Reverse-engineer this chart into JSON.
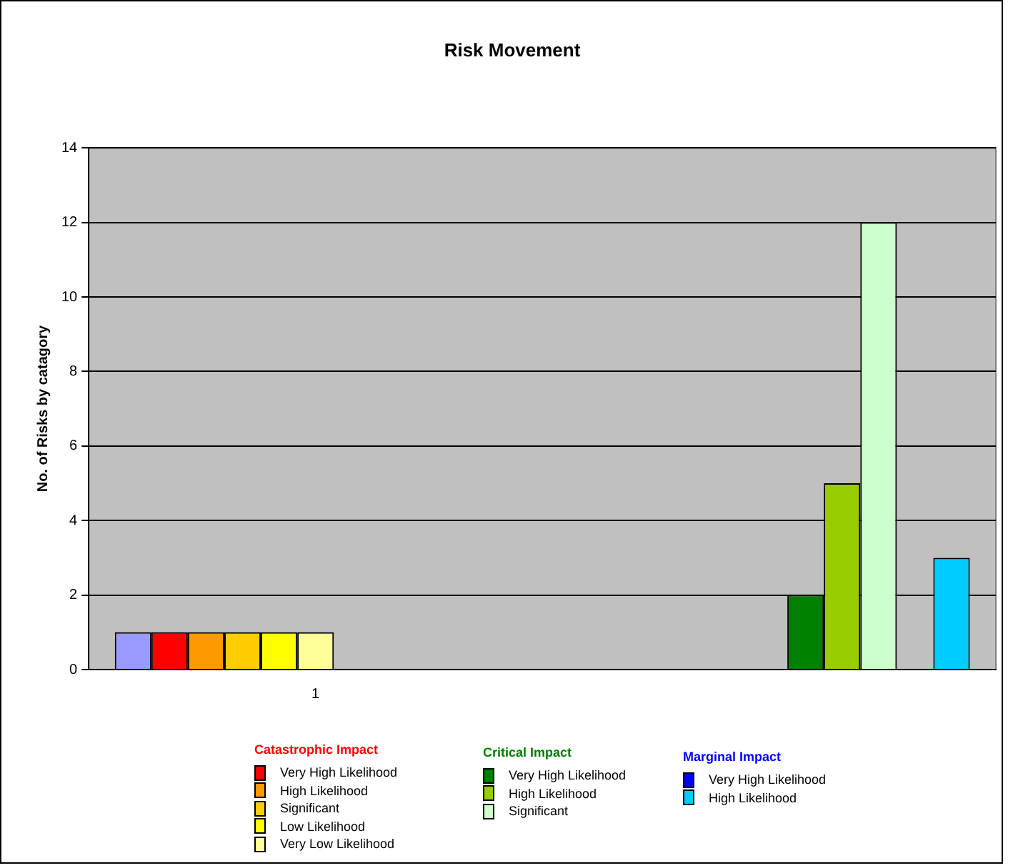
{
  "chart_data": {
    "type": "bar",
    "title": "Risk Movement",
    "ylabel": "No. of Risks by catagory",
    "categories": [
      "1",
      null
    ],
    "series": [
      {
        "color": "#9999ff",
        "values": [
          1,
          0
        ]
      },
      {
        "name": "Very High Likelihood",
        "color": "#ff0000",
        "values": [
          1,
          0
        ]
      },
      {
        "name": "High Likelihood",
        "color": "#ff9900",
        "values": [
          1,
          0
        ]
      },
      {
        "name": "Significant",
        "color": "#ffcc00",
        "values": [
          1,
          0
        ]
      },
      {
        "name": "Low Likelihood",
        "color": "#ffff00",
        "values": [
          1,
          0
        ]
      },
      {
        "name": "Very Low Likelihood",
        "color": "#ffff99",
        "values": [
          1,
          0
        ]
      },
      {
        "name": "Very High Likelihood",
        "color": "#008000",
        "values": [
          0,
          2
        ]
      },
      {
        "name": "High Likelihood",
        "color": "#99cc00",
        "values": [
          0,
          5
        ]
      },
      {
        "name": "Significant",
        "color": "#ccffcc",
        "values": [
          0,
          12
        ]
      },
      {
        "name": "Very High Likelihood",
        "color": "#0000ff",
        "values": [
          0,
          0
        ]
      },
      {
        "name": "High Likelihood",
        "color": "#00ccff",
        "values": [
          0,
          3
        ]
      }
    ],
    "annotations": [
      "Catastrophic Impact",
      "Critical Impact",
      "Marginal Impact"
    ],
    "ylim": [
      0,
      14
    ],
    "yticks": [
      0,
      2,
      4,
      6,
      8,
      10,
      12,
      14
    ],
    "grid": "y",
    "legend": "bottom"
  }
}
